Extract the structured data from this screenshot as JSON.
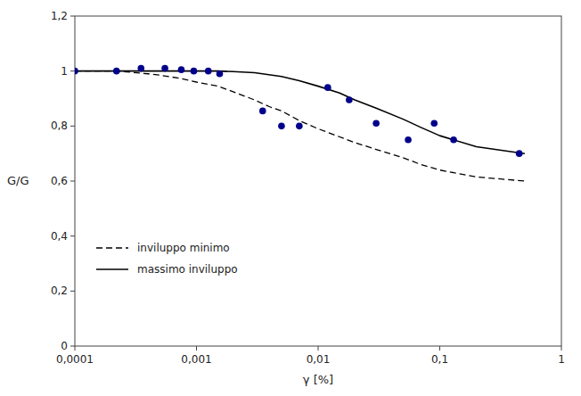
{
  "chart_data": {
    "type": "line",
    "xlabel": "γ [%]",
    "ylabel": "G/G",
    "log": "x",
    "xlim": [
      0.0001,
      1.0
    ],
    "ylim": [
      0,
      1.2
    ],
    "xticks": [
      {
        "value": 0.0001,
        "label": "0,0001"
      },
      {
        "value": 0.001,
        "label": "0,001"
      },
      {
        "value": 0.01,
        "label": "0,01"
      },
      {
        "value": 0.1,
        "label": "0,1"
      },
      1
    ],
    "yticks": [
      0,
      {
        "value": 0.2,
        "label": "0,2"
      },
      {
        "value": 0.4,
        "label": "0,4"
      },
      {
        "value": 0.6,
        "label": "0,6"
      },
      {
        "value": 0.8,
        "label": "0,8"
      },
      1,
      {
        "value": 1.2,
        "label": "1,2"
      }
    ],
    "grid": false,
    "legend": "lower left",
    "series": [
      {
        "name": "inviluppo minimo",
        "type": "line",
        "color": "#000000",
        "line_style": "dashed",
        "x": [
          0.0001,
          0.00015,
          0.0002,
          0.00025,
          0.0003,
          0.0004,
          0.0005,
          0.0007,
          0.001,
          0.0015,
          0.002,
          0.003,
          0.004,
          0.005,
          0.007,
          0.01,
          0.02,
          0.03,
          0.05,
          0.07,
          0.1,
          0.2,
          0.5
        ],
        "values": [
          1.0,
          1.0,
          1.0,
          0.998,
          0.995,
          0.99,
          0.985,
          0.975,
          0.96,
          0.945,
          0.925,
          0.895,
          0.87,
          0.855,
          0.82,
          0.79,
          0.74,
          0.715,
          0.685,
          0.66,
          0.64,
          0.615,
          0.6
        ]
      },
      {
        "name": "massimo inviluppo",
        "type": "line",
        "color": "#000000",
        "line_style": "solid",
        "x": [
          0.0001,
          0.00015,
          0.0002,
          0.0003,
          0.0005,
          0.0007,
          0.001,
          0.0015,
          0.002,
          0.003,
          0.005,
          0.007,
          0.01,
          0.015,
          0.02,
          0.03,
          0.05,
          0.07,
          0.1,
          0.2,
          0.5
        ],
        "values": [
          1.0,
          1.0,
          1.0,
          1.0,
          1.0,
          1.0,
          1.0,
          1.0,
          0.998,
          0.994,
          0.98,
          0.965,
          0.945,
          0.92,
          0.895,
          0.865,
          0.825,
          0.795,
          0.765,
          0.725,
          0.7
        ]
      },
      {
        "type": "scatter",
        "color": "#00008B",
        "marker": "circle",
        "x": [
          0.0001,
          0.00022,
          0.00035,
          0.00055,
          0.00075,
          0.00095,
          0.00125,
          0.00155,
          0.0035,
          0.005,
          0.007,
          0.012,
          0.018,
          0.03,
          0.055,
          0.09,
          0.13,
          0.45
        ],
        "values": [
          1.0,
          1.0,
          1.01,
          1.01,
          1.005,
          1.0,
          1.0,
          0.99,
          0.855,
          0.8,
          0.8,
          0.94,
          0.895,
          0.81,
          0.75,
          0.81,
          0.75,
          0.7
        ]
      }
    ]
  }
}
